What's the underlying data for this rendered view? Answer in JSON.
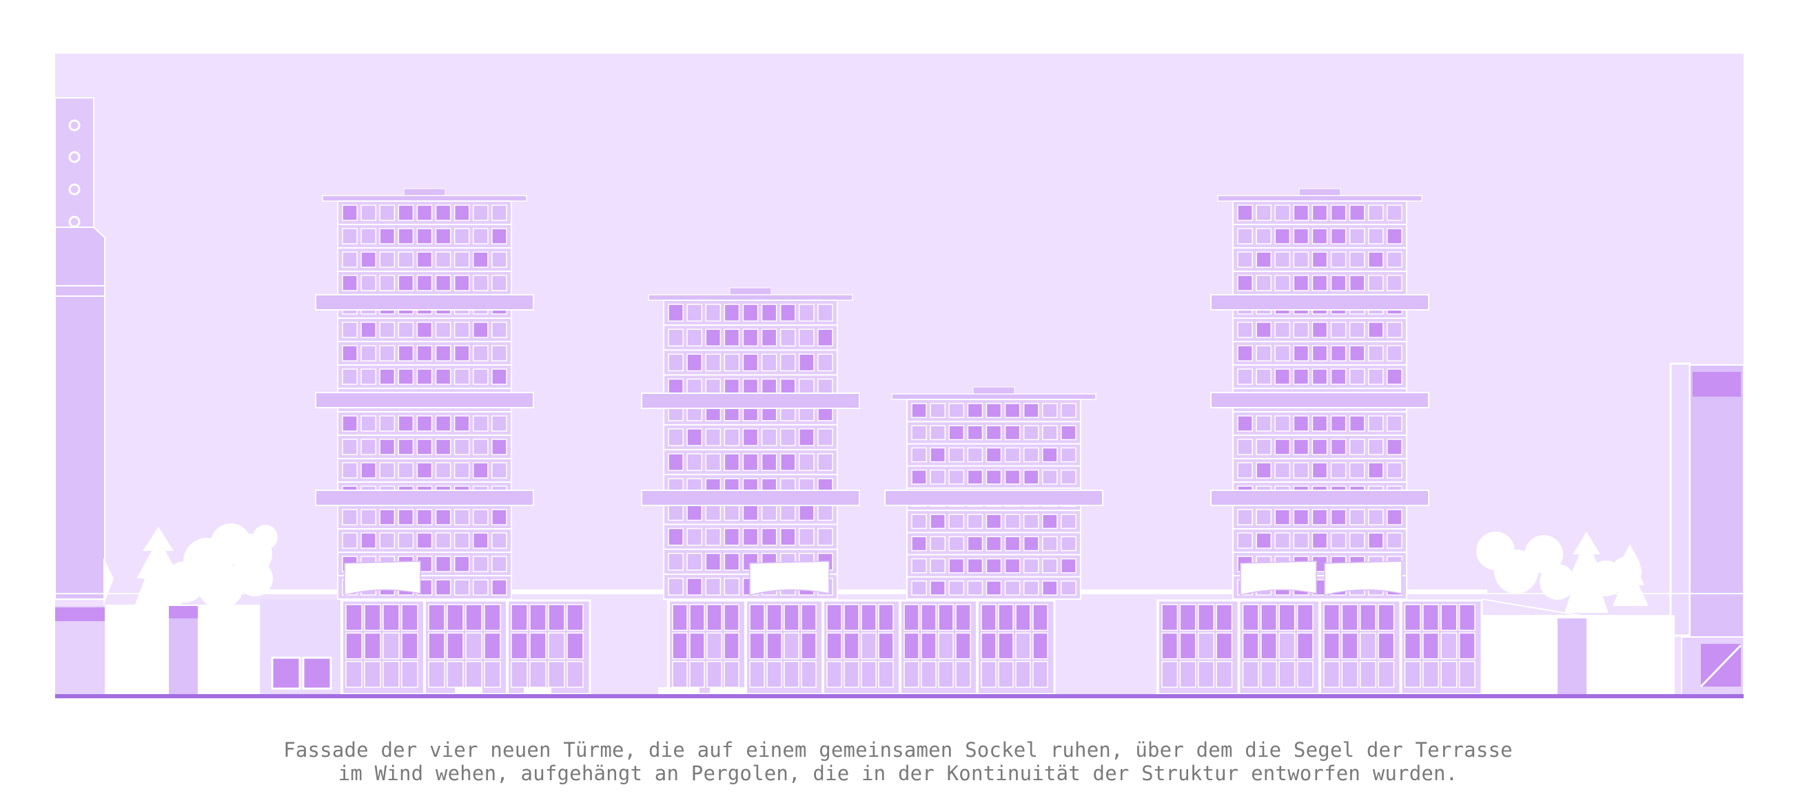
{
  "caption": {
    "line1": "Fassade der vier neuen Türme, die auf einem gemeinsamen Sockel ruhen, über dem die Segel der Terrasse",
    "line2": "im Wind wehen, aufgehängt an Pergolen, die in der Kontinuität der Struktur entworfen wurden."
  },
  "colors": {
    "sky": "#efe0ff",
    "body": "#e4cdfc",
    "panel": "#dbbdf9",
    "window": "#c790f2",
    "line": "#ffffff",
    "ground": "#a26ee0",
    "text": "#7a7a7a"
  }
}
